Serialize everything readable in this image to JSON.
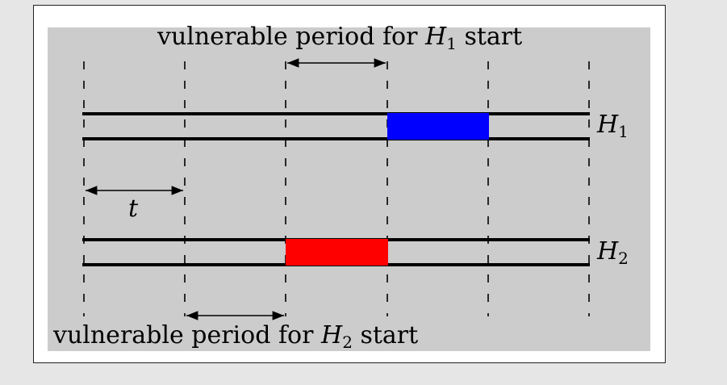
{
  "top_caption": {
    "text": "vulnerable period for",
    "var": "H",
    "sub": "1",
    "tail": "start"
  },
  "bottom_caption": {
    "text": "vulnerable period for",
    "var": "H",
    "sub": "2",
    "tail": "start"
  },
  "labels": {
    "h1": {
      "var": "H",
      "sub": "1"
    },
    "h2": {
      "var": "H",
      "sub": "2"
    },
    "t": "t"
  },
  "colors": {
    "h1_block": "#0000ff",
    "h2_block": "#ff0000",
    "panel": "#cccccc",
    "line": "#000000"
  }
}
